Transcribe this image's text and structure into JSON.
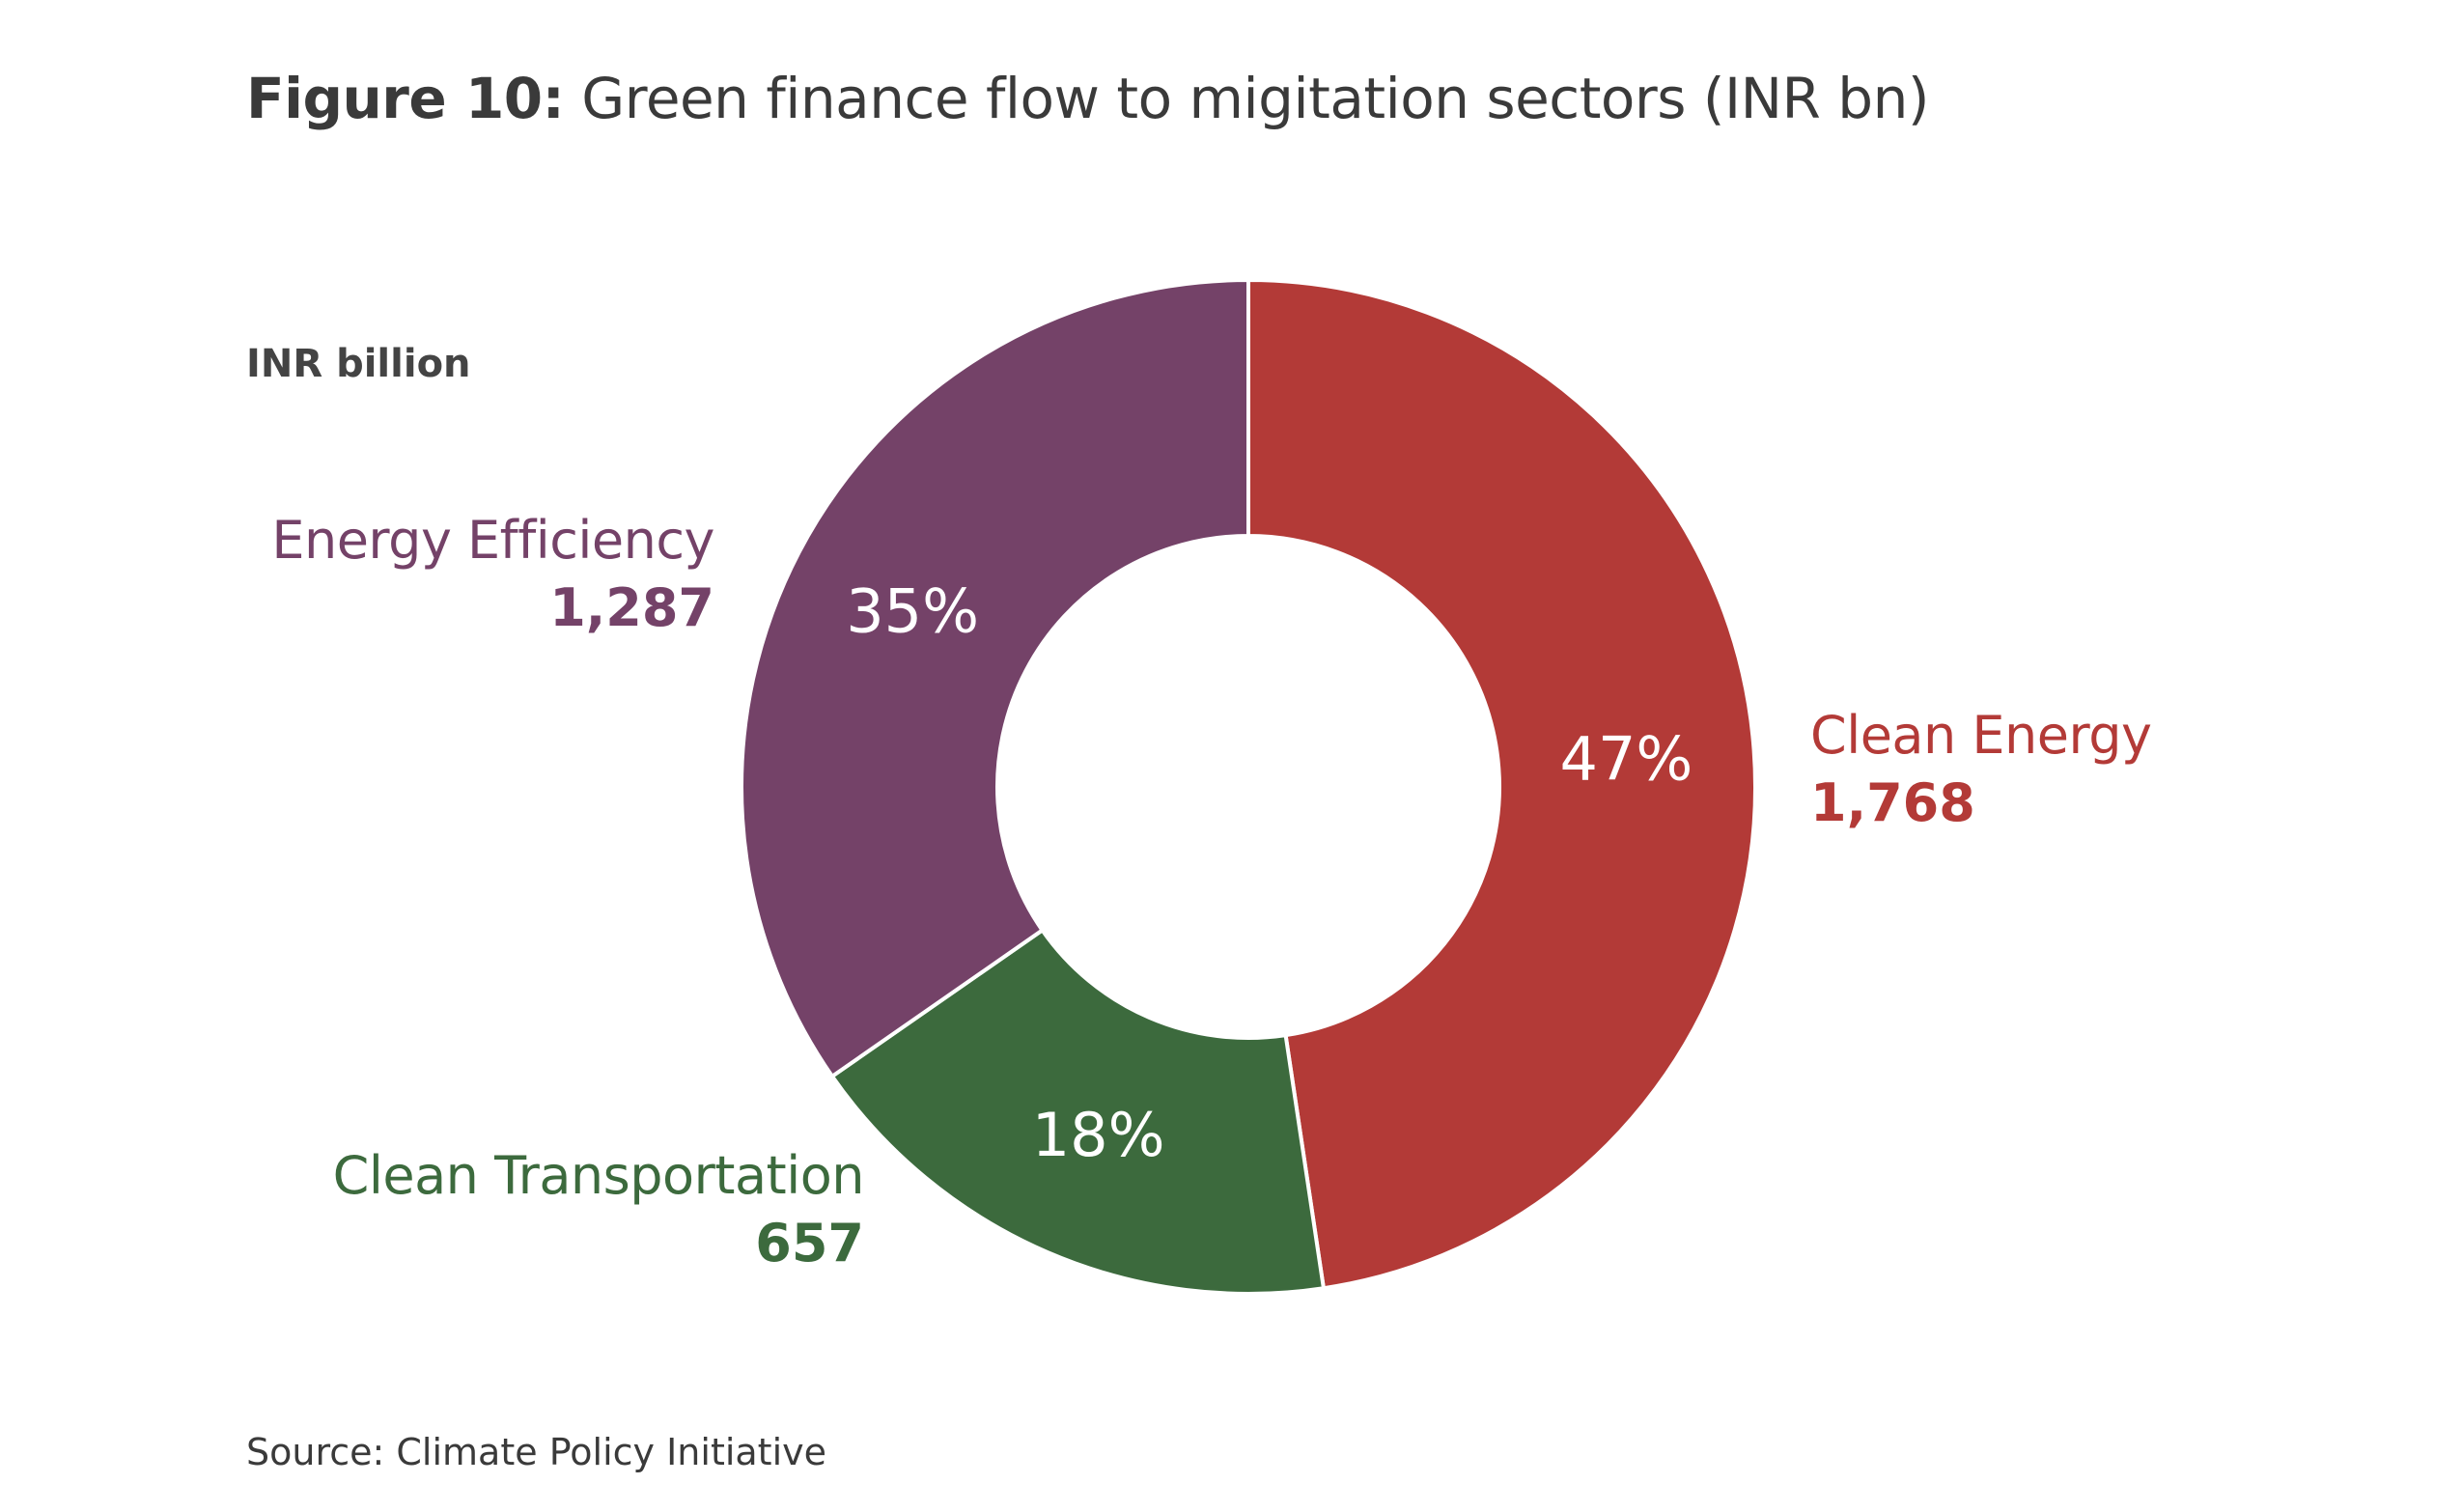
{
  "title": {
    "prefix": "Figure 10:",
    "text": "Green finance flow to migitation sectors (INR bn)"
  },
  "unit_label": "INR billion",
  "source": "Source: Climate Policy Initiative",
  "colors": {
    "clean_energy": "#b33a37",
    "energy_efficiency": "#744268",
    "clean_transportation": "#3c6a3d"
  },
  "chart_data": {
    "type": "pie",
    "style": "donut",
    "title": "Green finance flow to migitation sectors (INR bn)",
    "unit": "INR billion",
    "slices": [
      {
        "label": "Clean Energy",
        "value": 1768,
        "value_text": "1,768",
        "percent": 47,
        "percent_text": "47%",
        "color": "#b33a37"
      },
      {
        "label": "Clean Transportation",
        "value": 657,
        "value_text": "657",
        "percent": 18,
        "percent_text": "18%",
        "color": "#3c6a3d"
      },
      {
        "label": "Energy Efficiency",
        "value": 1287,
        "value_text": "1,287",
        "percent": 35,
        "percent_text": "35%",
        "color": "#744268"
      }
    ],
    "start_angle": "12 o'clock",
    "direction": "clockwise",
    "legend": "none"
  }
}
